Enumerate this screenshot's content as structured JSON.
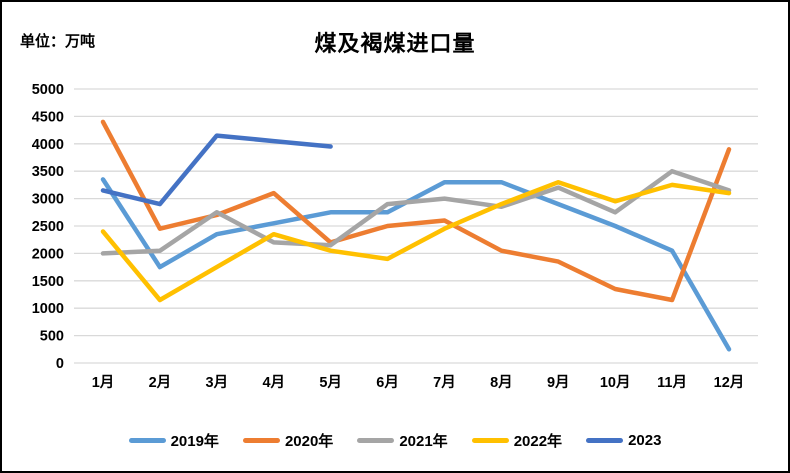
{
  "header": {
    "title": "煤及褐煤进口量",
    "unit_label": "单位：万吨"
  },
  "chart_data": {
    "type": "line",
    "title": "煤及褐煤进口量",
    "unit": "万吨",
    "categories": [
      "1月",
      "2月",
      "3月",
      "4月",
      "5月",
      "6月",
      "7月",
      "8月",
      "9月",
      "10月",
      "11月",
      "12月"
    ],
    "series": [
      {
        "name": "2019年",
        "color": "#5B9BD5",
        "values": [
          3350,
          1750,
          2350,
          2550,
          2750,
          2750,
          3300,
          3300,
          2900,
          2500,
          2050,
          250
        ]
      },
      {
        "name": "2020年",
        "color": "#ED7D31",
        "values": [
          4400,
          2450,
          2700,
          3100,
          2200,
          2500,
          2600,
          2050,
          1850,
          1350,
          1150,
          3900
        ]
      },
      {
        "name": "2021年",
        "color": "#A5A5A5",
        "values": [
          2000,
          2050,
          2750,
          2200,
          2150,
          2900,
          3000,
          2850,
          3200,
          2750,
          3500,
          3150
        ]
      },
      {
        "name": "2022年",
        "color": "#FFC000",
        "values": [
          2400,
          1150,
          1750,
          2350,
          2050,
          1900,
          2450,
          2900,
          3300,
          2950,
          3250,
          3100
        ]
      },
      {
        "name": "2023",
        "color": "#4472C4",
        "values": [
          3150,
          2900,
          4150,
          4050,
          3950,
          null,
          null,
          null,
          null,
          null,
          null,
          null
        ]
      }
    ],
    "ylim": [
      0,
      5000
    ],
    "ystep": 500,
    "grid": true,
    "gridline_color": "#D9D9D9",
    "legend_position": "bottom",
    "line_width": 4.5
  }
}
